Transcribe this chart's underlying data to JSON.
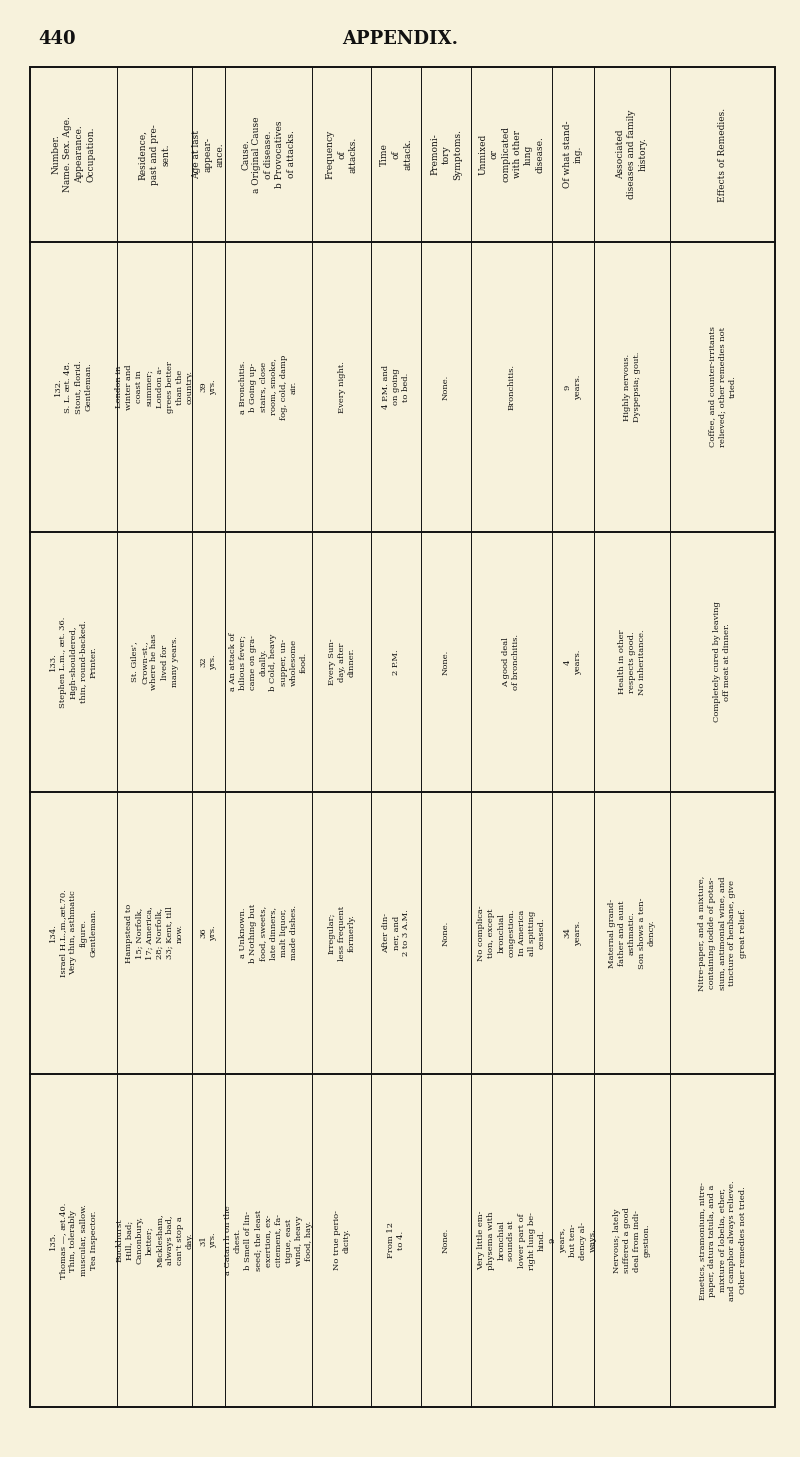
{
  "page_number": "440",
  "page_title": "APPENDIX.",
  "bg_color": "#f7f2dc",
  "text_color": "#111111",
  "col_headers": [
    "Number.\nName. Sex. Age.\nAppearance.\nOccupation.",
    "Residence,\npast and pre-\nsent.",
    "Age at last\nappear-\nance.",
    "Cause.\na Original Cause\nof disease.\nb Provocatives\nof attacks.",
    "Frequency\nof\nattacks.",
    "Time\nof\nattack.",
    "Premoni-\ntory\nSymptoms.",
    "Unmixed\nor\ncomplicated\nwith other\nlung\ndisease.",
    "Of what stand-\ning.",
    "Associated\ndiseases and family\nhistory.",
    "Effects of Remedies."
  ],
  "rows": [
    {
      "number": "132.\nS. L. æt. 48.\nStout, florid.\nGentleman.",
      "residence": "London in\nwinter and\ncoast in\nsummer;\nLondon a-\ngrees better\nthan the\ncountry.",
      "age_appearance": "39\nyrs.",
      "cause": "a Bronchitis.\nb Going up-\nstairs, close\nroom, smoke,\nfog, cold, damp\nair.",
      "frequency": "Every night.",
      "time": "4 P.M. and\non going\nto bed.",
      "premonitory": "None.",
      "unmixed": "Bronchitis.",
      "standing": "9\nyears.",
      "associated": "Highly nervous.\nDyspepsia; gout.",
      "remedies": "Coffee, and counter-irritants\nrelieved; other remedies not\ntried."
    },
    {
      "number": "133.\nStephen L.m., æt. 36.\nHigh-shouldered,\nthin, round-backed.\nPrinter.",
      "residence": "St. Giles',\nCrown-st.,\nwhere he has\nlived for\nmany years.",
      "age_appearance": "32\nyrs.",
      "cause": "a An attack of\nbilious fever;\ncame on gra-\ndually.\nb Cold, heavy\nsupper, un-\nwholesome\nfood.",
      "frequency": "Every Sun-\nday, after\ndinner.",
      "time": "2 P.M.",
      "premonitory": "None.",
      "unmixed": "A good deal\nof bronchitis.",
      "standing": "4\nyears.",
      "associated": "Health in other\nrespects good.\nNo inheritance.",
      "remedies": "Completely cured by leaving\noff meat at dinner."
    },
    {
      "number": "134.\nIsrael H.L.,m.,æt.70.\nVery thin, asthmatic\nfigure.\nGentleman.",
      "residence": "Hampstead to\n15; Norfolk,\n17; America,\n28; Norfolk,\n33; Kent, till\nnow.",
      "age_appearance": "36\nyrs.",
      "cause": "a Unknown.\nb Nothing but\nfood, sweets,\nlate dinners,\nmalt liquor,\nmade dishes.",
      "frequency": "Irregular;\nless frequent\nformerly.",
      "time": "After din-\nner, and\n2 to 3 A.M.",
      "premonitory": "None.",
      "unmixed": "No complica-\ntion, except\nbronchial\ncongestion.\nIn America\nall spitting\nceased.",
      "standing": "34\nyears.",
      "associated": "Maternal grand-\nfather and aunt\nasthmatic.\nSon shows a ten-\ndency.",
      "remedies": "Nitre-paper, and a mixture,\ncontaining iodide of potas-\nsium, antimonial wine, and\ntincture of henbane, give\ngreat relief."
    },
    {
      "number": "135.\nThomas —, æt.40.\nThin, tolerably\nmuscular, sallow.\nTea Inspector.",
      "residence": "Buckhurst\nHill, bad;\nCanonbury,\nbetter;\nMicklesham,\nalways bad,\ncan't stop a\nday.",
      "age_appearance": "31\nyrs.",
      "cause": "a Catarrh on the\nchest.\nb Smell of lin-\nseed; the least\nexertion, ex-\ncitement, fa-\ntigue, east\nwind, heavy\nfood, hay.",
      "frequency": "No true perio-\ndicity.",
      "time": "From 12\nto 4.",
      "premonitory": "None.",
      "unmixed": "Very little em-\nphysema with\nbronchial\nsounds at\nlower part of\nright lung be-\nhind.",
      "standing": "9\nyears,\nbut ten-\ndency al-\nways.",
      "associated": "Nervous; lately\nsuffered a good\ndeal from indi-\ngestion.",
      "remedies": "Emetics, stramonium, nitre-\npaper, datura tatula, and a\nmixture of lobelia, ether,\nand camphor always relieve.\nOther remedies not tried."
    }
  ]
}
